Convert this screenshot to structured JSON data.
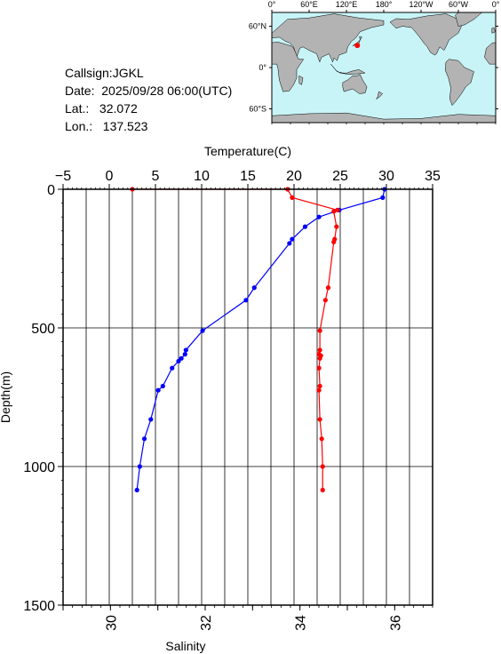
{
  "info": {
    "callsign": "Callsign:JGKL",
    "date": "Date:  2025/09/28 06:00(UTC)",
    "lat": "Lat.:   32.072",
    "lon": "Lon.:   137.523"
  },
  "map": {
    "top_labels": [
      "0°",
      "60°E",
      "120°E",
      "180°",
      "120°W",
      "60°W",
      "0°"
    ],
    "left_labels": [
      "60°N",
      "0°",
      "60°S"
    ],
    "station_lat": 32.072,
    "station_lon": 137.523,
    "ocean_color": "#c8f4f7",
    "land_color": "#b3b3b3",
    "marker_color": "#ff0000"
  },
  "chart_data": {
    "type": "line",
    "ylabel": "Depth(m)",
    "ylim": [
      0,
      1500
    ],
    "yticks": [
      0,
      500,
      1000,
      1500
    ],
    "y_inverted": true,
    "grid": true,
    "top_axis": {
      "label": "Temperature(C)",
      "range": [
        -5,
        35
      ],
      "ticks": [
        -5,
        0,
        5,
        10,
        15,
        20,
        25,
        30,
        35
      ]
    },
    "bottom_axis": {
      "label": "Salinity",
      "range": [
        29,
        36.8
      ],
      "ticks": [
        30,
        32,
        34,
        36
      ]
    },
    "series": [
      {
        "axis": "top",
        "color": "#0000ff",
        "x": [
          29.8,
          29.6,
          24.9,
          22.7,
          21.2,
          19.8,
          19.5,
          15.7,
          14.8,
          10.1,
          8.3,
          8.2,
          7.8,
          7.5,
          6.8,
          5.8,
          5.3,
          4.5,
          3.8,
          3.3,
          3.0
        ],
        "y": [
          0,
          30,
          75,
          100,
          135,
          180,
          195,
          355,
          400,
          510,
          580,
          595,
          610,
          620,
          645,
          710,
          725,
          830,
          900,
          1000,
          1085
        ]
      },
      {
        "axis": "top",
        "color": "#ff0000",
        "x": [
          2.5,
          19.3,
          19.8,
          24.7,
          24.3,
          24.6,
          24.4,
          24.3,
          23.7,
          23.4,
          22.8,
          22.8,
          22.7,
          22.9,
          22.8,
          22.7,
          22.8,
          22.7,
          22.8,
          23.0,
          23.1,
          23.1
        ],
        "y": [
          0,
          0,
          30,
          75,
          80,
          135,
          180,
          190,
          355,
          400,
          510,
          580,
          595,
          600,
          610,
          645,
          710,
          725,
          830,
          900,
          1000,
          1085
        ]
      }
    ]
  }
}
